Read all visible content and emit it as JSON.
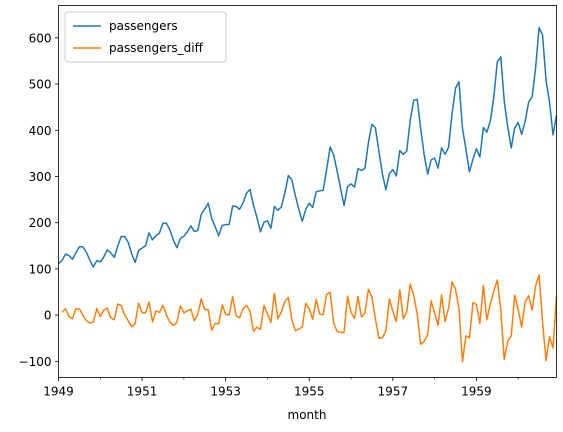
{
  "chart_data": {
    "type": "line",
    "title": "",
    "xlabel": "month",
    "ylabel": "",
    "x_start": 1949,
    "x_step": 0.0833333333,
    "xlim": [
      1949,
      1960.9167
    ],
    "ylim": [
      -135,
      670
    ],
    "xticks": [
      1949,
      1951,
      1953,
      1955,
      1957,
      1959
    ],
    "xtick_labels": [
      "1949",
      "1951",
      "1953",
      "1955",
      "1957",
      "1959"
    ],
    "yticks": [
      -100,
      0,
      100,
      200,
      300,
      400,
      500,
      600
    ],
    "ytick_labels": [
      "−100",
      "0",
      "100",
      "200",
      "300",
      "400",
      "500",
      "600"
    ],
    "legend": {
      "position": "top-left"
    },
    "series": [
      {
        "name": "passengers",
        "color": "#1f77b4",
        "values": [
          112,
          118,
          132,
          129,
          121,
          135,
          148,
          148,
          136,
          119,
          104,
          118,
          115,
          126,
          141,
          135,
          125,
          149,
          170,
          170,
          158,
          133,
          114,
          140,
          145,
          150,
          178,
          163,
          172,
          178,
          199,
          199,
          184,
          162,
          146,
          166,
          171,
          180,
          193,
          181,
          183,
          218,
          230,
          242,
          209,
          191,
          172,
          194,
          196,
          196,
          236,
          235,
          229,
          243,
          264,
          272,
          237,
          211,
          180,
          201,
          204,
          188,
          235,
          227,
          234,
          264,
          302,
          293,
          259,
          229,
          203,
          229,
          242,
          233,
          267,
          269,
          270,
          315,
          364,
          347,
          312,
          274,
          237,
          278,
          284,
          277,
          317,
          313,
          318,
          374,
          413,
          405,
          355,
          306,
          271,
          306,
          315,
          301,
          356,
          348,
          355,
          422,
          465,
          467,
          404,
          347,
          305,
          336,
          340,
          318,
          362,
          348,
          363,
          435,
          491,
          505,
          404,
          359,
          310,
          337,
          360,
          342,
          406,
          396,
          420,
          472,
          548,
          559,
          463,
          407,
          362,
          405,
          417,
          391,
          419,
          461,
          472,
          535,
          622,
          606,
          508,
          461,
          390,
          432
        ]
      },
      {
        "name": "passengers_diff",
        "color": "#ff7f0e",
        "values": [
          null,
          6,
          14,
          -3,
          -8,
          14,
          13,
          0,
          -12,
          -17,
          -15,
          14,
          -3,
          11,
          15,
          -6,
          -10,
          24,
          21,
          0,
          -12,
          -25,
          -19,
          26,
          5,
          5,
          28,
          -15,
          9,
          6,
          21,
          0,
          -15,
          -22,
          -16,
          20,
          5,
          9,
          13,
          -12,
          2,
          35,
          12,
          12,
          -33,
          -18,
          -19,
          22,
          2,
          0,
          40,
          -1,
          -6,
          14,
          21,
          8,
          -35,
          -26,
          -31,
          21,
          3,
          -16,
          47,
          -8,
          7,
          30,
          38,
          -9,
          -34,
          -30,
          -26,
          26,
          13,
          -9,
          34,
          2,
          1,
          45,
          49,
          -17,
          -35,
          -38,
          -37,
          41,
          6,
          -7,
          40,
          -4,
          5,
          56,
          39,
          -8,
          -50,
          -49,
          -35,
          35,
          9,
          -14,
          55,
          -8,
          7,
          67,
          43,
          2,
          -63,
          -57,
          -42,
          31,
          4,
          -22,
          44,
          -14,
          15,
          72,
          56,
          14,
          -101,
          -45,
          -49,
          27,
          23,
          -18,
          64,
          -10,
          24,
          52,
          76,
          11,
          -96,
          -56,
          -45,
          43,
          12,
          -26,
          28,
          42,
          11,
          63,
          87,
          -16,
          -98,
          -47,
          -71,
          42
        ]
      }
    ]
  }
}
